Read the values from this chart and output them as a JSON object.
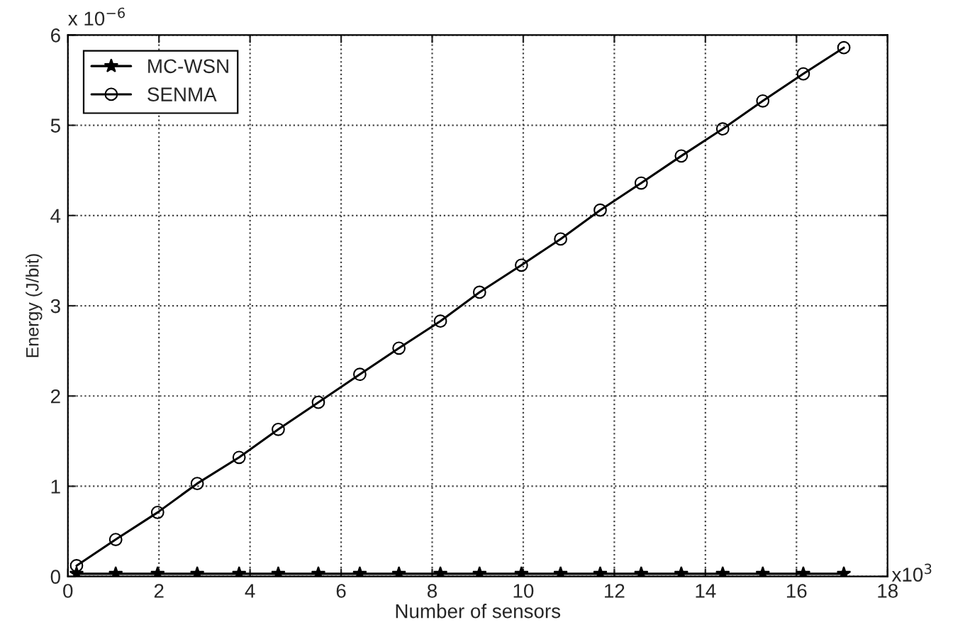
{
  "chart_data": {
    "type": "line",
    "xlabel": "Number of sensors",
    "ylabel": "Energy (J/bit)",
    "annotations": [
      "x 10$^{−6}$",
      "x10$^{3}$"
    ],
    "xlim": [
      0,
      18
    ],
    "xticks": [
      0,
      2,
      4,
      6,
      8,
      10,
      12,
      14,
      16,
      18
    ],
    "ylim": [
      0,
      6
    ],
    "yticks": [
      0,
      1,
      2,
      3,
      4,
      5,
      6
    ],
    "grid": true,
    "legend": "top left",
    "line_style": "solid",
    "series": [
      {
        "name": "MC-WSN",
        "color": "#000000",
        "marker": "star",
        "x": [
          0.19,
          1.05,
          1.97,
          2.84,
          3.76,
          4.62,
          5.5,
          6.41,
          7.27,
          8.18,
          9.04,
          9.96,
          10.82,
          11.69,
          12.59,
          13.47,
          14.38,
          15.26,
          16.15,
          17.04
        ],
        "values": [
          0.03,
          0.03,
          0.03,
          0.03,
          0.03,
          0.03,
          0.03,
          0.03,
          0.03,
          0.03,
          0.03,
          0.03,
          0.03,
          0.03,
          0.03,
          0.03,
          0.03,
          0.03,
          0.03,
          0.03
        ]
      },
      {
        "name": "SENMA",
        "color": "#000000",
        "marker": "circle",
        "x": [
          0.19,
          1.05,
          1.97,
          2.84,
          3.76,
          4.62,
          5.5,
          6.41,
          7.27,
          8.18,
          9.04,
          9.96,
          10.82,
          11.69,
          12.59,
          13.47,
          14.38,
          15.26,
          16.15,
          17.04
        ],
        "values": [
          0.12,
          0.41,
          0.71,
          1.03,
          1.32,
          1.63,
          1.93,
          2.24,
          2.53,
          2.83,
          3.15,
          3.45,
          3.74,
          4.06,
          4.36,
          4.66,
          4.96,
          5.27,
          5.57,
          5.86
        ]
      }
    ]
  }
}
